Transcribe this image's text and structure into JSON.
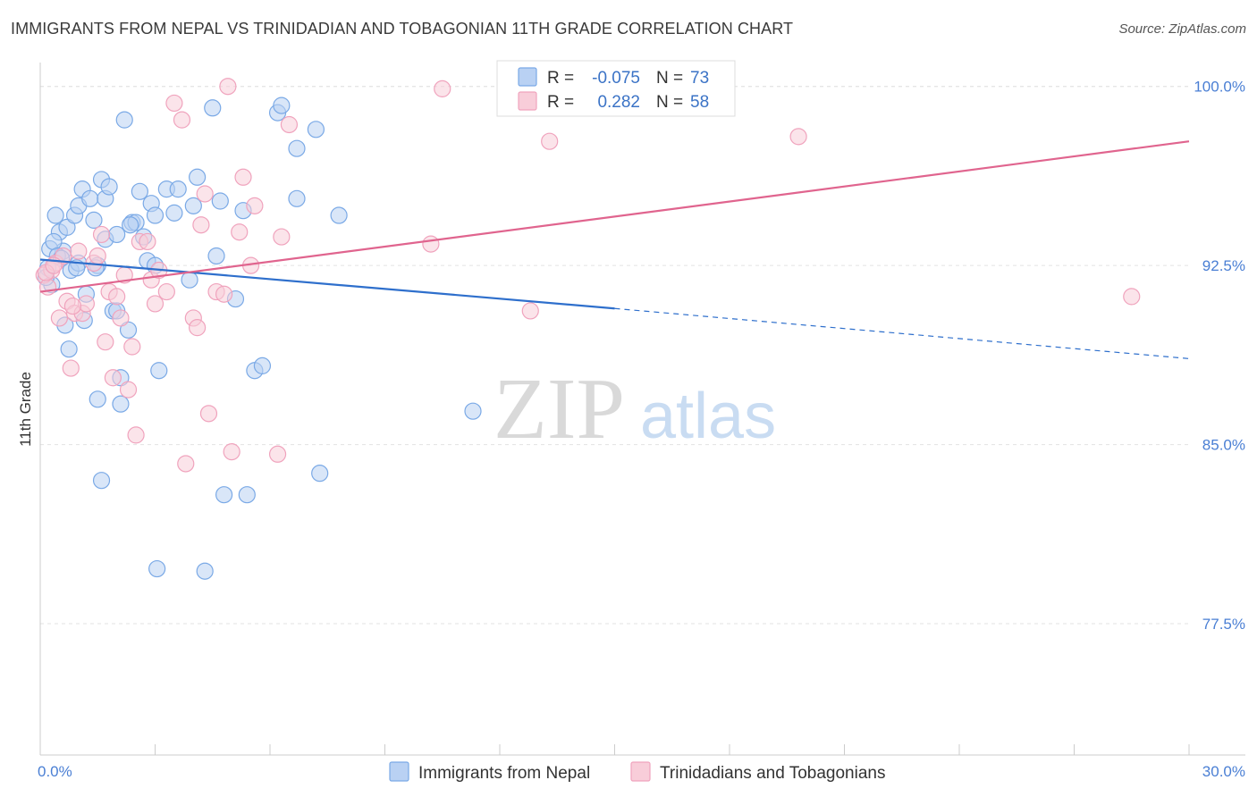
{
  "title": "IMMIGRANTS FROM NEPAL VS TRINIDADIAN AND TOBAGONIAN 11TH GRADE CORRELATION CHART",
  "source": "Source: ZipAtlas.com",
  "watermark": {
    "zip": "ZIP",
    "atlas": "atlas"
  },
  "legend_box": {
    "rows": [
      {
        "r_label": "R = ",
        "r_value": "-0.075",
        "n_label": "N = ",
        "n_value": "73"
      },
      {
        "r_label": "R = ",
        "r_value": "0.282",
        "n_label": "N = ",
        "n_value": "58"
      }
    ]
  },
  "chart_data": {
    "type": "scatter",
    "title": "IMMIGRANTS FROM NEPAL VS TRINIDADIAN AND TOBAGONIAN 11TH GRADE CORRELATION CHART",
    "xlabel": "",
    "ylabel": "11th Grade",
    "xlim": [
      0,
      30
    ],
    "ylim": [
      72.0,
      101.0
    ],
    "x_tick_labels": [
      {
        "value": 0,
        "label": "0.0%"
      },
      {
        "value": 30,
        "label": "30.0%"
      }
    ],
    "y_tick_labels": [
      {
        "value": 100,
        "label": "100.0%"
      },
      {
        "value": 92.5,
        "label": "92.5%"
      },
      {
        "value": 85,
        "label": "85.0%"
      },
      {
        "value": 77.5,
        "label": "77.5%"
      }
    ],
    "grid": true,
    "legend_position": "bottom",
    "series": [
      {
        "name": "Immigrants from Nepal",
        "color": "#7aa9e6",
        "fill": "#b9d1f3",
        "trend_color": "#2e6fcc",
        "R": -0.075,
        "N": 73,
        "trend": {
          "x0": 0,
          "y0": 92.75,
          "x1": 15,
          "y1": 90.7,
          "x_dash_end": 30,
          "y_dash_end": 88.6
        },
        "points": [
          [
            0.2,
            92.4
          ],
          [
            0.3,
            91.7
          ],
          [
            0.4,
            94.6
          ],
          [
            0.5,
            93.9
          ],
          [
            0.6,
            93.1
          ],
          [
            0.7,
            94.1
          ],
          [
            0.8,
            92.3
          ],
          [
            0.9,
            94.6
          ],
          [
            1.0,
            95.0
          ],
          [
            1.0,
            92.6
          ],
          [
            1.1,
            95.7
          ],
          [
            1.2,
            91.3
          ],
          [
            1.3,
            95.3
          ],
          [
            1.4,
            94.4
          ],
          [
            1.5,
            92.5
          ],
          [
            1.5,
            86.9
          ],
          [
            1.6,
            96.1
          ],
          [
            1.7,
            95.3
          ],
          [
            1.7,
            93.6
          ],
          [
            1.8,
            95.8
          ],
          [
            1.9,
            90.6
          ],
          [
            2.0,
            93.8
          ],
          [
            2.0,
            90.6
          ],
          [
            2.1,
            87.8
          ],
          [
            2.1,
            86.7
          ],
          [
            2.2,
            98.6
          ],
          [
            2.3,
            89.8
          ],
          [
            2.4,
            94.3
          ],
          [
            2.5,
            94.3
          ],
          [
            2.6,
            95.6
          ],
          [
            2.7,
            93.7
          ],
          [
            2.8,
            92.7
          ],
          [
            2.9,
            95.1
          ],
          [
            3.0,
            94.6
          ],
          [
            3.0,
            92.5
          ],
          [
            3.1,
            88.1
          ],
          [
            3.3,
            95.7
          ],
          [
            3.5,
            94.7
          ],
          [
            3.6,
            95.7
          ],
          [
            3.9,
            91.9
          ],
          [
            4.0,
            95.0
          ],
          [
            4.1,
            96.2
          ],
          [
            4.5,
            99.1
          ],
          [
            4.6,
            92.9
          ],
          [
            4.7,
            95.2
          ],
          [
            5.1,
            91.1
          ],
          [
            5.3,
            94.8
          ],
          [
            5.6,
            88.1
          ],
          [
            5.8,
            88.3
          ],
          [
            6.2,
            98.9
          ],
          [
            6.3,
            99.2
          ],
          [
            6.7,
            97.4
          ],
          [
            6.7,
            95.3
          ],
          [
            7.2,
            98.2
          ],
          [
            7.8,
            94.6
          ],
          [
            11.3,
            86.4
          ],
          [
            0.15,
            92.0
          ],
          [
            0.25,
            93.2
          ],
          [
            0.35,
            93.5
          ],
          [
            0.45,
            92.9
          ],
          [
            0.55,
            92.8
          ],
          [
            0.65,
            90.0
          ],
          [
            0.75,
            89.0
          ],
          [
            0.95,
            92.4
          ],
          [
            1.15,
            90.2
          ],
          [
            1.6,
            83.5
          ],
          [
            3.05,
            79.8
          ],
          [
            4.3,
            79.7
          ],
          [
            4.8,
            82.9
          ],
          [
            5.4,
            82.9
          ],
          [
            7.3,
            83.8
          ],
          [
            1.45,
            92.4
          ],
          [
            2.35,
            94.2
          ]
        ]
      },
      {
        "name": "Trinidadians and Tobagonians",
        "color": "#f0a3bd",
        "fill": "#f8cdd9",
        "trend_color": "#e0648e",
        "R": 0.282,
        "N": 58,
        "trend": {
          "x0": 0,
          "y0": 91.4,
          "x1": 30,
          "y1": 97.7
        },
        "points": [
          [
            0.1,
            92.1
          ],
          [
            0.2,
            91.6
          ],
          [
            0.3,
            92.3
          ],
          [
            0.4,
            92.6
          ],
          [
            0.5,
            90.3
          ],
          [
            0.6,
            92.9
          ],
          [
            0.7,
            91.0
          ],
          [
            0.8,
            88.2
          ],
          [
            0.9,
            90.5
          ],
          [
            1.0,
            93.1
          ],
          [
            1.1,
            90.5
          ],
          [
            1.2,
            90.9
          ],
          [
            1.4,
            92.6
          ],
          [
            1.5,
            92.9
          ],
          [
            1.6,
            93.8
          ],
          [
            1.7,
            89.3
          ],
          [
            1.8,
            91.4
          ],
          [
            1.9,
            87.8
          ],
          [
            2.0,
            91.2
          ],
          [
            2.1,
            90.3
          ],
          [
            2.2,
            92.1
          ],
          [
            2.3,
            87.3
          ],
          [
            2.4,
            89.1
          ],
          [
            2.5,
            85.4
          ],
          [
            2.6,
            93.5
          ],
          [
            2.8,
            93.5
          ],
          [
            2.9,
            91.9
          ],
          [
            3.0,
            90.9
          ],
          [
            3.1,
            92.3
          ],
          [
            3.3,
            91.4
          ],
          [
            3.5,
            99.3
          ],
          [
            3.7,
            98.6
          ],
          [
            3.8,
            84.2
          ],
          [
            4.0,
            90.3
          ],
          [
            4.1,
            89.9
          ],
          [
            4.2,
            94.2
          ],
          [
            4.3,
            95.5
          ],
          [
            4.4,
            86.3
          ],
          [
            4.6,
            91.4
          ],
          [
            4.8,
            91.3
          ],
          [
            4.9,
            100.0
          ],
          [
            5.0,
            84.7
          ],
          [
            5.2,
            93.9
          ],
          [
            5.3,
            96.2
          ],
          [
            5.5,
            92.5
          ],
          [
            5.6,
            95.0
          ],
          [
            6.2,
            84.6
          ],
          [
            6.3,
            93.7
          ],
          [
            6.5,
            98.4
          ],
          [
            10.2,
            93.4
          ],
          [
            10.5,
            99.9
          ],
          [
            12.8,
            90.6
          ],
          [
            13.3,
            97.7
          ],
          [
            19.8,
            97.9
          ],
          [
            28.5,
            91.2
          ],
          [
            0.15,
            92.2
          ],
          [
            0.35,
            92.5
          ],
          [
            0.85,
            90.8
          ]
        ]
      }
    ]
  }
}
